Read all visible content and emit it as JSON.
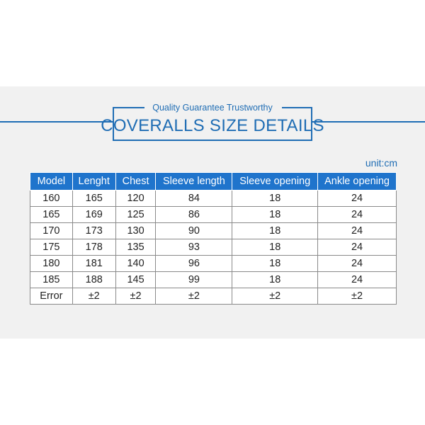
{
  "header": {
    "tagline": "Quality Guarantee Trustworthy",
    "title": "COVERALLS SIZE DETAILS"
  },
  "unit": "unit:cm",
  "table": {
    "columns": [
      "Model",
      "Lenght",
      "Chest",
      "Sleeve length",
      "Sleeve opening",
      "Ankle opening"
    ],
    "rows": [
      [
        "160",
        "165",
        "120",
        "84",
        "18",
        "24"
      ],
      [
        "165",
        "169",
        "125",
        "86",
        "18",
        "24"
      ],
      [
        "170",
        "173",
        "130",
        "90",
        "18",
        "24"
      ],
      [
        "175",
        "178",
        "135",
        "93",
        "18",
        "24"
      ],
      [
        "180",
        "181",
        "140",
        "96",
        "18",
        "24"
      ],
      [
        "185",
        "188",
        "145",
        "99",
        "18",
        "24"
      ],
      [
        "Error",
        "±2",
        "±2",
        "±2",
        "±2",
        "±2"
      ]
    ]
  }
}
